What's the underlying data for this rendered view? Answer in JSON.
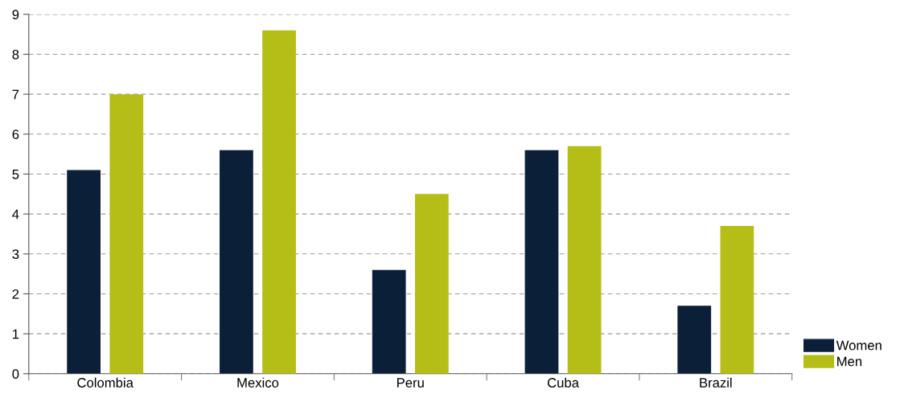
{
  "chart_data": {
    "type": "bar",
    "categories": [
      "Colombia",
      "Mexico",
      "Peru",
      "Cuba",
      "Brazil"
    ],
    "series": [
      {
        "name": "Women",
        "color": "#0b1f38",
        "values": [
          5.1,
          5.6,
          2.6,
          5.6,
          1.7
        ]
      },
      {
        "name": "Men",
        "color": "#b5be17",
        "values": [
          7.0,
          8.6,
          4.5,
          5.7,
          3.7
        ]
      }
    ],
    "ylim": [
      0,
      9
    ],
    "yticks": [
      0,
      1,
      2,
      3,
      4,
      5,
      6,
      7,
      8,
      9
    ],
    "grid": "y",
    "legend": "bottom right"
  }
}
